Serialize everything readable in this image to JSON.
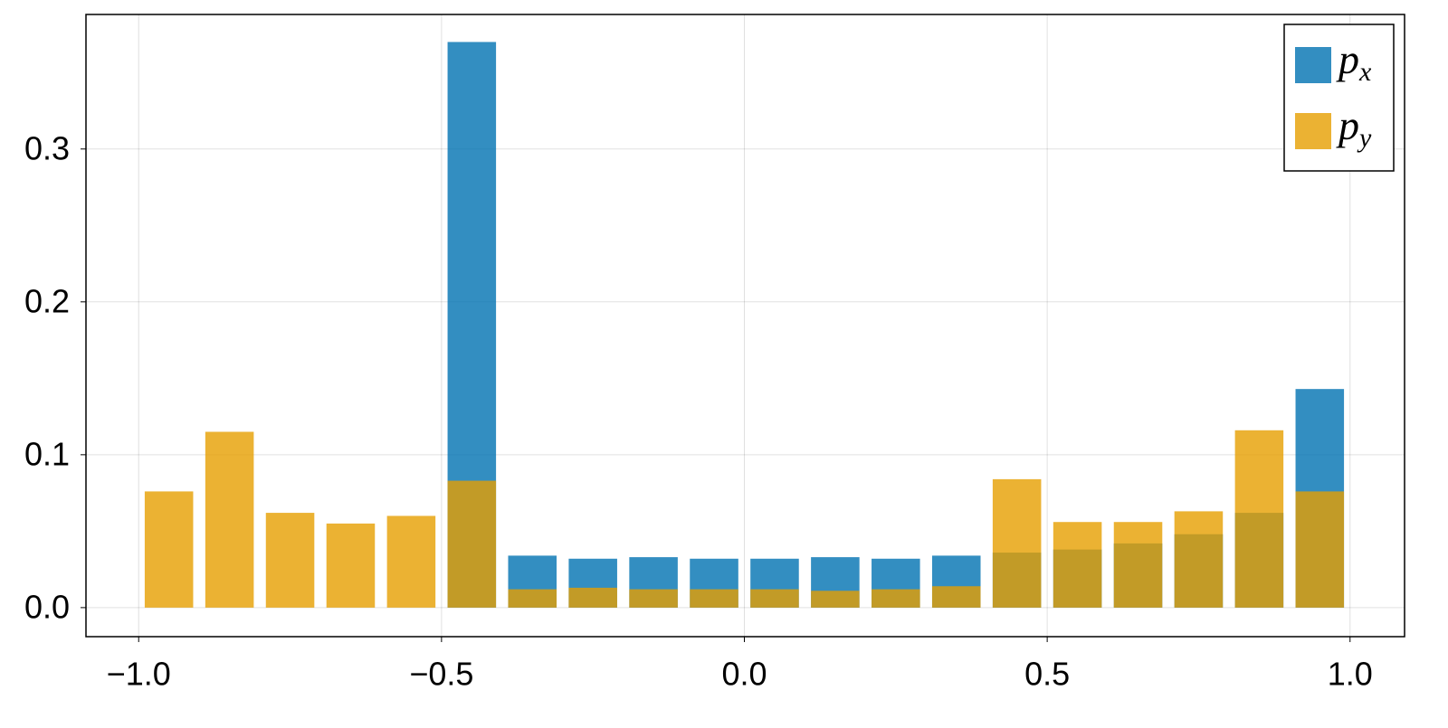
{
  "chart_data": {
    "type": "bar",
    "x": [
      -0.95,
      -0.85,
      -0.75,
      -0.65,
      -0.55,
      -0.45,
      -0.35,
      -0.25,
      -0.15,
      -0.05,
      0.05,
      0.15,
      0.25,
      0.35,
      0.45,
      0.55,
      0.65,
      0.75,
      0.85,
      0.95
    ],
    "series": [
      {
        "name": "p_x",
        "color": "#0072b2",
        "values": [
          0,
          0,
          0,
          0,
          0,
          0.37,
          0.034,
          0.032,
          0.033,
          0.032,
          0.032,
          0.033,
          0.032,
          0.034,
          0.036,
          0.038,
          0.042,
          0.048,
          0.062,
          0.143
        ]
      },
      {
        "name": "p_y",
        "color": "#e69f00",
        "values": [
          0.076,
          0.115,
          0.062,
          0.055,
          0.06,
          0.083,
          0.012,
          0.013,
          0.012,
          0.012,
          0.012,
          0.011,
          0.012,
          0.014,
          0.084,
          0.056,
          0.056,
          0.063,
          0.116,
          0.076
        ]
      }
    ],
    "bar_width": 0.08,
    "xlim": [
      -1.087,
      1.09
    ],
    "ylim": [
      -0.019,
      0.388
    ],
    "xticks": [
      {
        "value": -1,
        "label": "−1.0"
      },
      {
        "value": -0.5,
        "label": "−0.5"
      },
      {
        "value": 0,
        "label": "0.0"
      },
      0.5,
      {
        "value": 1,
        "label": "1.0"
      }
    ],
    "yticks": [
      {
        "value": 0,
        "label": "0.0"
      },
      0.1,
      0.2,
      0.3
    ],
    "grid": true,
    "legend": "top-right"
  }
}
